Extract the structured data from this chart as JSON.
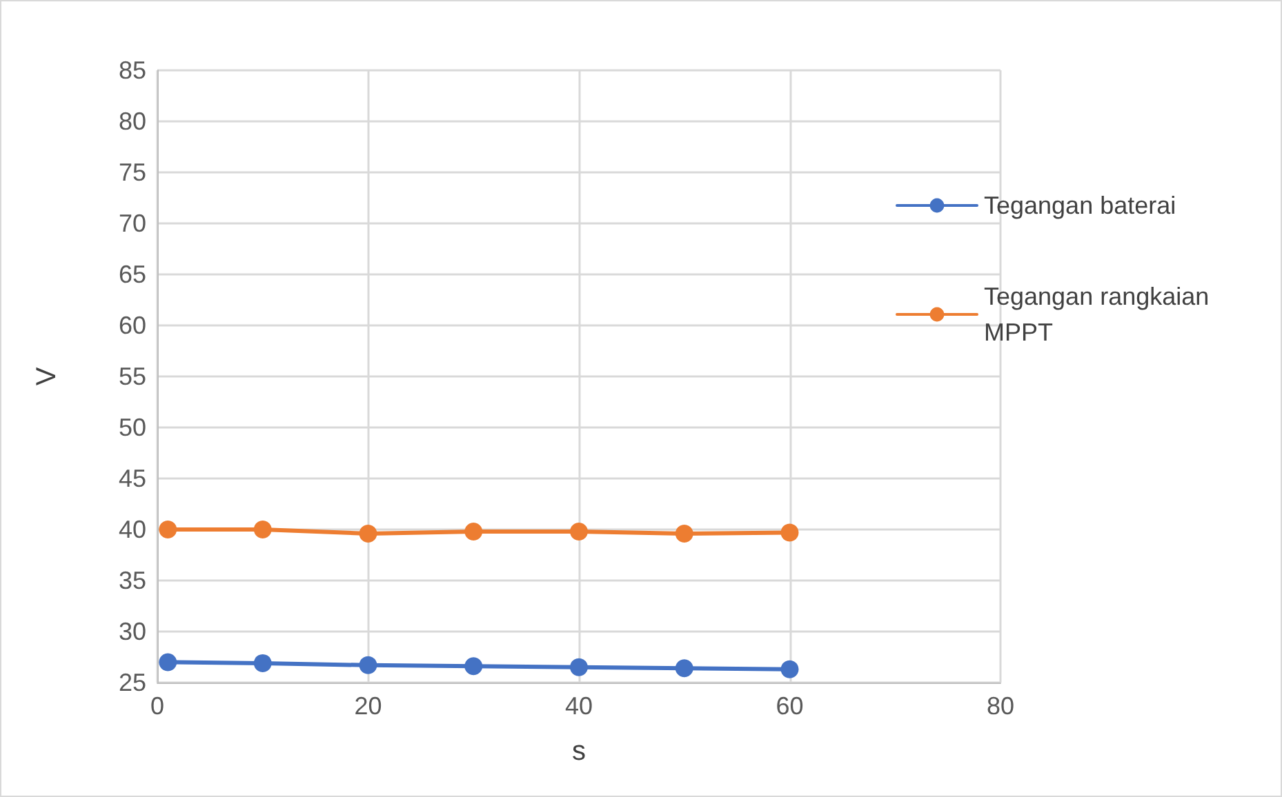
{
  "chart_data": {
    "type": "line",
    "xlabel": "s",
    "ylabel": "V",
    "x": [
      1,
      10,
      20,
      30,
      40,
      50,
      60
    ],
    "series": [
      {
        "name": "Tegangan baterai",
        "color": "#4472c4",
        "values": [
          27.0,
          26.9,
          26.7,
          26.6,
          26.5,
          26.4,
          26.3
        ]
      },
      {
        "name": "Tegangan rangkaian MPPT",
        "color": "#ed7d31",
        "values": [
          40.0,
          40.0,
          39.6,
          39.8,
          39.8,
          39.6,
          39.7
        ]
      }
    ],
    "xlim": [
      0,
      80
    ],
    "xticks": [
      0,
      20,
      40,
      60,
      80
    ],
    "ylim": [
      25,
      85
    ],
    "yticks": [
      25,
      30,
      35,
      40,
      45,
      50,
      55,
      60,
      65,
      70,
      75,
      80,
      85
    ],
    "grid": true,
    "legend": "right",
    "marker": "circle",
    "line_style": "solid"
  }
}
